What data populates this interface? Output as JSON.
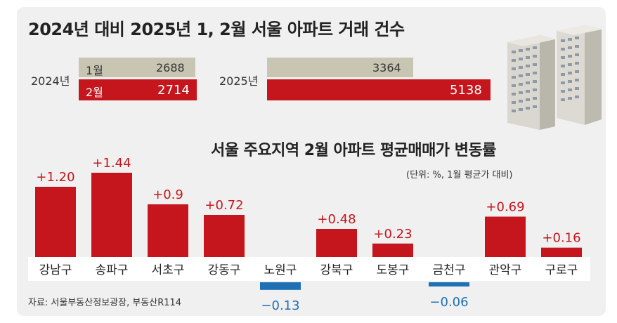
{
  "top_section": {
    "title": "2024년 대비 2025년 1, 2월 서울 아파트 거래 건수",
    "year_2024_label": "2024년",
    "year_2025_label": "2025년",
    "month1_label": "1월",
    "month2_label": "2월",
    "values": {
      "y2024_jan": "2688",
      "y2024_feb": "2714",
      "y2025_jan": "3364",
      "y2025_feb": "5138"
    }
  },
  "bottom_section": {
    "title": "서울 주요지역 2월 아파트 평균매매가 변동률",
    "unit_note": "(단위: %, 1월 평균가 대비)"
  },
  "source": "자료: 서울부동산정보광장, 부동산R114",
  "colors": {
    "positive": "#c5161d",
    "negative": "#1f6fb5",
    "gray_bar": "#c8c6b2",
    "panel": "#f0f0f0"
  },
  "chart_data": [
    {
      "type": "bar",
      "orientation": "horizontal",
      "title": "2024년 대비 2025년 1, 2월 서울 아파트 거래 건수",
      "categories": [
        "2024년",
        "2025년"
      ],
      "series": [
        {
          "name": "1월",
          "values": [
            2688,
            3364
          ]
        },
        {
          "name": "2월",
          "values": [
            2714,
            5138
          ]
        }
      ]
    },
    {
      "type": "bar",
      "title": "서울 주요지역 2월 아파트 평균매매가 변동률",
      "subtitle": "(단위: %, 1월 평균가 대비)",
      "categories": [
        "강남구",
        "송파구",
        "서초구",
        "강동구",
        "노원구",
        "강북구",
        "도봉구",
        "금천구",
        "관악구",
        "구로구"
      ],
      "values": [
        1.2,
        1.44,
        0.9,
        0.72,
        -0.13,
        0.48,
        0.23,
        -0.06,
        0.69,
        0.16
      ],
      "value_labels": [
        "+1.20",
        "+1.44",
        "+0.9",
        "+0.72",
        "−0.13",
        "+0.48",
        "+0.23",
        "−0.06",
        "+0.69",
        "+0.16"
      ]
    }
  ]
}
